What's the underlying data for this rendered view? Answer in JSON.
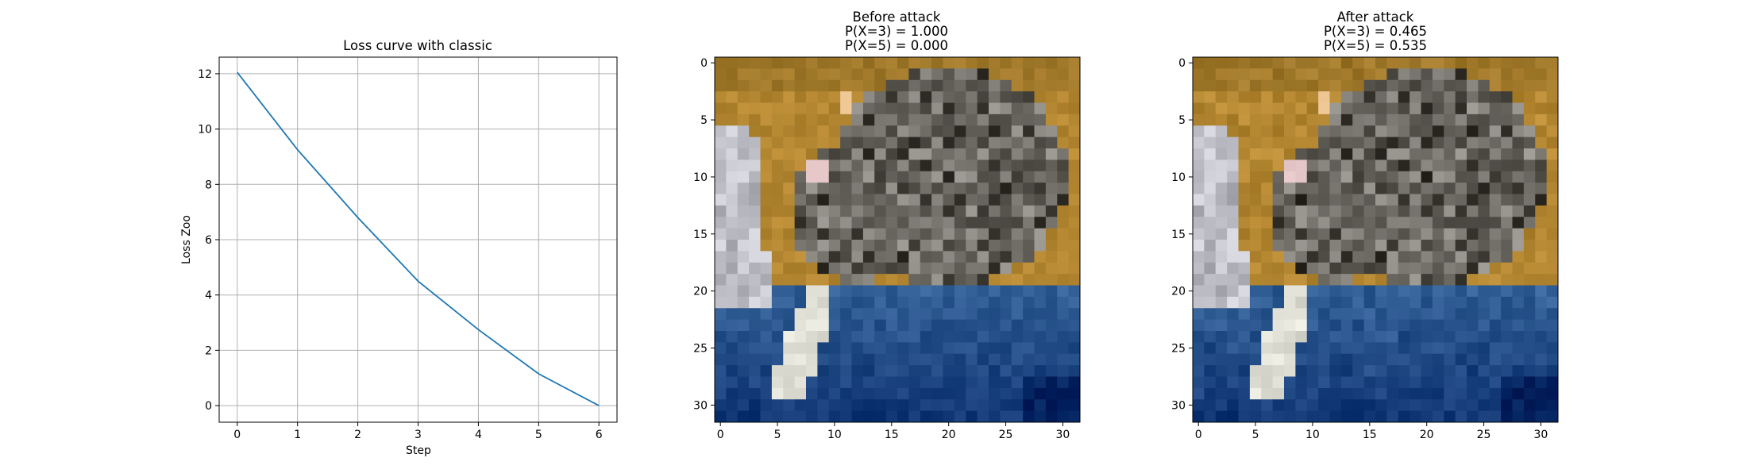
{
  "chart_data": [
    {
      "type": "line",
      "title": "Loss curve with classic",
      "xlabel": "Step",
      "ylabel": "Loss Zoo",
      "xlim": [
        -0.3,
        6.3
      ],
      "ylim": [
        -0.6,
        12.6
      ],
      "grid": true,
      "x_ticks": [
        "0",
        "1",
        "2",
        "3",
        "4",
        "5",
        "6"
      ],
      "y_ticks": [
        "0",
        "2",
        "4",
        "6",
        "8",
        "10",
        "12"
      ],
      "series": [
        {
          "x": [
            0,
            1,
            2,
            3,
            4,
            5,
            6
          ],
          "values": [
            12.05,
            9.25,
            6.8,
            4.5,
            2.75,
            1.15,
            0.0
          ]
        }
      ],
      "line_color": "#1f77b4"
    },
    {
      "type": "image",
      "title_lines": [
        "Before attack",
        "P(X=3) = 1.000",
        "P(X=5) = 0.000"
      ],
      "x_ticks": [
        "0",
        "5",
        "10",
        "15",
        "20",
        "25",
        "30"
      ],
      "y_ticks": [
        "0",
        "5",
        "10",
        "15",
        "20",
        "25",
        "30"
      ],
      "image_size": [
        32,
        32
      ]
    },
    {
      "type": "image",
      "title_lines": [
        "After attack",
        "P(X=3) = 0.465",
        "P(X=5) = 0.535"
      ],
      "x_ticks": [
        "0",
        "5",
        "10",
        "15",
        "20",
        "25",
        "30"
      ],
      "y_ticks": [
        "0",
        "5",
        "10",
        "15",
        "20",
        "25",
        "30"
      ],
      "image_size": [
        32,
        32
      ]
    }
  ],
  "colors": {
    "background_orange": "#b8862e",
    "blue_fabric": "#2f5f91",
    "grid": "#b0b0b0"
  }
}
